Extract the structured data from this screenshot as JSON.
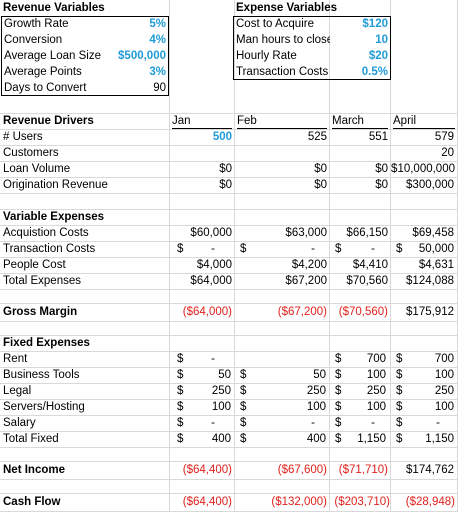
{
  "revenue_vars": {
    "header": "Revenue Variables",
    "rows": [
      {
        "label": "Growth Rate",
        "value": "5%"
      },
      {
        "label": "Conversion",
        "value": "4%"
      },
      {
        "label": "Average Loan Size",
        "value": "$500,000"
      },
      {
        "label": "Average Points",
        "value": "3%"
      },
      {
        "label": "Days to Convert",
        "value": "90"
      }
    ]
  },
  "expense_vars": {
    "header": "Expense Variables",
    "rows": [
      {
        "label": "Cost to Acquire",
        "value": "$120"
      },
      {
        "label": "Man hours to close",
        "value": "10"
      },
      {
        "label": "Hourly Rate",
        "value": "$20"
      },
      {
        "label": "Transaction Costs",
        "value": "0.5%"
      }
    ]
  },
  "months": [
    "Jan",
    "Feb",
    "March",
    "April"
  ],
  "sections": {
    "revenue_drivers": "Revenue Drivers",
    "variable_expenses": "Variable Expenses",
    "gross_margin": "Gross Margin",
    "fixed_expenses": "Fixed Expenses",
    "net_income": "Net Income",
    "cash_flow": "Cash Flow"
  },
  "rows": {
    "users": {
      "label": "# Users",
      "jan": "500",
      "feb": "525",
      "mar": "551",
      "apr": "579"
    },
    "customers": {
      "label": "Customers",
      "jan": "",
      "feb": "",
      "mar": "",
      "apr": "20"
    },
    "loan_volume": {
      "label": "Loan Volume",
      "jan": "$0",
      "feb": "$0",
      "mar": "$0",
      "apr": "$10,000,000"
    },
    "origination_revenue": {
      "label": "Origination Revenue",
      "jan": "$0",
      "feb": "$0",
      "mar": "$0",
      "apr": "$300,000"
    },
    "acquisition_costs": {
      "label": "Acquistion Costs",
      "jan": "$60,000",
      "feb": "$63,000",
      "mar": "$66,150",
      "apr": "$69,458"
    },
    "transaction_costs": {
      "label": "Transaction Costs",
      "jan_sym": "$",
      "jan": "-",
      "feb_sym": "$",
      "feb": "-",
      "mar_sym": "$",
      "mar": "-",
      "apr_sym": "$",
      "apr": "50,000"
    },
    "people_cost": {
      "label": "People Cost",
      "jan": "$4,000",
      "feb": "$4,200",
      "mar": "$4,410",
      "apr": "$4,631"
    },
    "total_expenses": {
      "label": "Total Expenses",
      "jan": "$64,000",
      "feb": "$67,200",
      "mar": "$70,560",
      "apr": "$124,088"
    },
    "gross_margin": {
      "jan": "($64,000)",
      "feb": "($67,200)",
      "mar": "($70,560)",
      "apr": "$175,912"
    },
    "rent": {
      "label": "Rent",
      "jan_sym": "$",
      "jan": "-",
      "feb": "",
      "mar_sym": "$",
      "mar": "700",
      "apr_sym": "$",
      "apr": "700"
    },
    "business_tools": {
      "label": "Business Tools",
      "jan_sym": "$",
      "jan": "50",
      "feb_sym": "$",
      "feb": "50",
      "mar_sym": "$",
      "mar": "100",
      "apr_sym": "$",
      "apr": "100"
    },
    "legal": {
      "label": "Legal",
      "jan_sym": "$",
      "jan": "250",
      "feb_sym": "$",
      "feb": "250",
      "mar_sym": "$",
      "mar": "250",
      "apr_sym": "$",
      "apr": "250"
    },
    "servers_hosting": {
      "label": "Servers/Hosting",
      "jan_sym": "$",
      "jan": "100",
      "feb_sym": "$",
      "feb": "100",
      "mar_sym": "$",
      "mar": "100",
      "apr_sym": "$",
      "apr": "100"
    },
    "salary": {
      "label": "Salary",
      "jan_sym": "$",
      "jan": "-",
      "feb_sym": "$",
      "feb": "-",
      "mar_sym": "$",
      "mar": "-",
      "apr_sym": "$",
      "apr": "-"
    },
    "total_fixed": {
      "label": "Total Fixed",
      "jan_sym": "$",
      "jan": "400",
      "feb_sym": "$",
      "feb": "400",
      "mar_sym": "$",
      "mar": "1,150",
      "apr_sym": "$",
      "apr": "1,150"
    },
    "net_income": {
      "jan": "($64,400)",
      "feb": "($67,600)",
      "mar": "($71,710)",
      "apr": "$174,762"
    },
    "cash_flow": {
      "jan": "($64,400)",
      "feb": "($132,000)",
      "mar": "($203,710)",
      "apr": "($28,948)"
    }
  }
}
